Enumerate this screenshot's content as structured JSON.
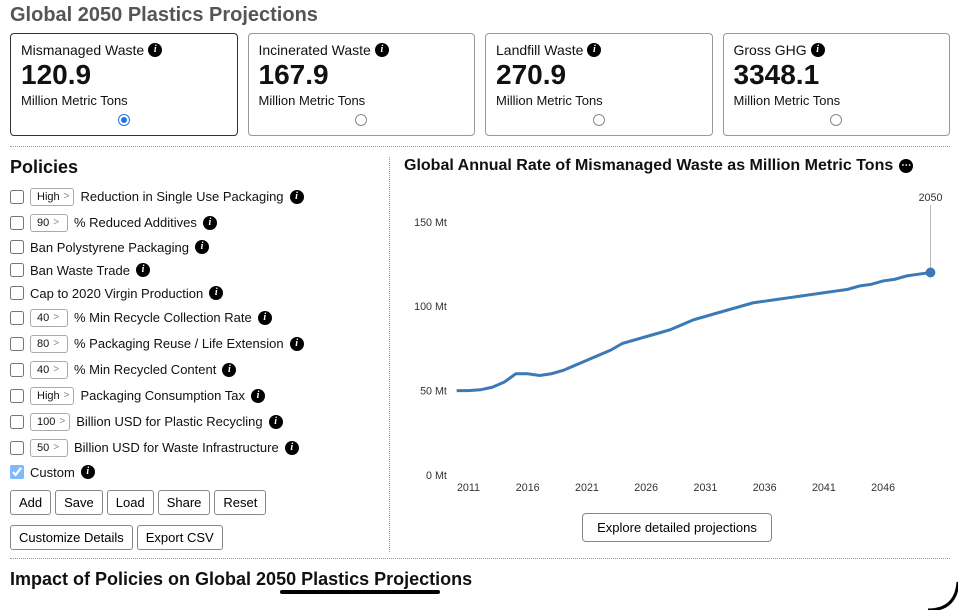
{
  "top_title_fragment": "Global 2050 Plastics Projections",
  "metrics": [
    {
      "label": "Mismanaged Waste",
      "value": "120.9",
      "unit": "Million Metric Tons",
      "selected": true
    },
    {
      "label": "Incinerated Waste",
      "value": "167.9",
      "unit": "Million Metric Tons",
      "selected": false
    },
    {
      "label": "Landfill Waste",
      "value": "270.9",
      "unit": "Million Metric Tons",
      "selected": false
    },
    {
      "label": "Gross GHG",
      "value": "3348.1",
      "unit": "Million Metric Tons",
      "selected": false
    }
  ],
  "policies_title": "Policies",
  "policies": [
    {
      "chip": "High",
      "label": "Reduction in Single Use Packaging",
      "checked": false
    },
    {
      "chip": "90",
      "label": "% Reduced Additives",
      "checked": false
    },
    {
      "chip": null,
      "label": "Ban Polystyrene Packaging",
      "checked": false
    },
    {
      "chip": null,
      "label": "Ban Waste Trade",
      "checked": false
    },
    {
      "chip": null,
      "label": "Cap to 2020 Virgin Production",
      "checked": false
    },
    {
      "chip": "40",
      "label": "% Min Recycle Collection Rate",
      "checked": false
    },
    {
      "chip": "80",
      "label": "% Packaging Reuse / Life Extension",
      "checked": false
    },
    {
      "chip": "40",
      "label": "% Min Recycled Content",
      "checked": false
    },
    {
      "chip": "High",
      "label": "Packaging Consumption Tax",
      "checked": false
    },
    {
      "chip": "100",
      "label": "Billion USD for Plastic Recycling",
      "checked": false
    },
    {
      "chip": "50",
      "label": "Billion USD for Waste Infrastructure",
      "checked": false
    },
    {
      "chip": null,
      "label": "Custom",
      "checked": true,
      "disabled": true
    }
  ],
  "buttons_row1": [
    "Add",
    "Save",
    "Load",
    "Share",
    "Reset"
  ],
  "buttons_row2": [
    "Customize Details",
    "Export CSV"
  ],
  "chart": {
    "title": "Global Annual Rate of Mismanaged Waste as Million Metric Tons",
    "end_label": "2050",
    "y_ticks": [
      {
        "v": 0,
        "label": "0 Mt"
      },
      {
        "v": 50,
        "label": "50 Mt"
      },
      {
        "v": 100,
        "label": "100 Mt"
      },
      {
        "v": 150,
        "label": "150 Mt"
      }
    ],
    "x_ticks": [
      "2011",
      "2016",
      "2021",
      "2026",
      "2031",
      "2036",
      "2041",
      "2046"
    ],
    "x_domain": [
      2010,
      2050
    ],
    "y_domain": [
      0,
      160
    ],
    "line_color": "#3b7ab5",
    "line_width": 3,
    "point_color": "#3b7ab5",
    "data": [
      [
        2010,
        50
      ],
      [
        2011,
        50
      ],
      [
        2012,
        50.5
      ],
      [
        2013,
        52
      ],
      [
        2014,
        55
      ],
      [
        2015,
        60
      ],
      [
        2016,
        60
      ],
      [
        2017,
        59
      ],
      [
        2018,
        60
      ],
      [
        2019,
        62
      ],
      [
        2020,
        65
      ],
      [
        2021,
        68
      ],
      [
        2022,
        71
      ],
      [
        2023,
        74
      ],
      [
        2024,
        78
      ],
      [
        2025,
        80
      ],
      [
        2026,
        82
      ],
      [
        2027,
        84
      ],
      [
        2028,
        86
      ],
      [
        2029,
        89
      ],
      [
        2030,
        92
      ],
      [
        2031,
        94
      ],
      [
        2032,
        96
      ],
      [
        2033,
        98
      ],
      [
        2034,
        100
      ],
      [
        2035,
        102
      ],
      [
        2036,
        103
      ],
      [
        2037,
        104
      ],
      [
        2038,
        105
      ],
      [
        2039,
        106
      ],
      [
        2040,
        107
      ],
      [
        2041,
        108
      ],
      [
        2042,
        109
      ],
      [
        2043,
        110
      ],
      [
        2044,
        112
      ],
      [
        2045,
        113
      ],
      [
        2046,
        115
      ],
      [
        2047,
        116
      ],
      [
        2048,
        118
      ],
      [
        2049,
        119
      ],
      [
        2050,
        120
      ]
    ],
    "explore_label": "Explore detailed projections"
  },
  "bottom_title": "Impact of Policies on Global 2050 Plastics Projections"
}
